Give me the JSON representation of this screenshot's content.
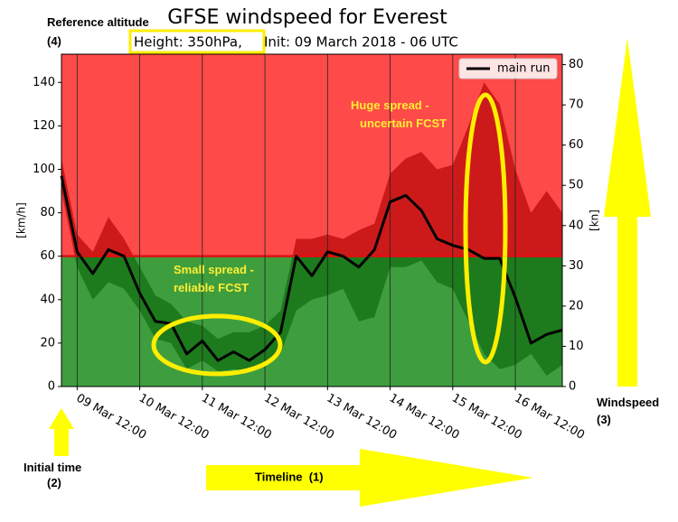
{
  "chart_data": {
    "type": "line",
    "title": "GFSE windspeed for Everest",
    "subtitle_parts": [
      "Height: 350hPa,",
      "Init: 09 March 2018 - 06 UTC"
    ],
    "y_label": "[km/h]",
    "y2_label": "[kn]",
    "x": [
      "2018-03-09T06:00",
      "2018-03-09T12:00",
      "2018-03-09T18:00",
      "2018-03-10T00:00",
      "2018-03-10T06:00",
      "2018-03-10T12:00",
      "2018-03-10T18:00",
      "2018-03-11T00:00",
      "2018-03-11T06:00",
      "2018-03-11T12:00",
      "2018-03-11T18:00",
      "2018-03-12T00:00",
      "2018-03-12T06:00",
      "2018-03-12T12:00",
      "2018-03-12T18:00",
      "2018-03-13T00:00",
      "2018-03-13T06:00",
      "2018-03-13T12:00",
      "2018-03-13T18:00",
      "2018-03-14T00:00",
      "2018-03-14T06:00",
      "2018-03-14T12:00",
      "2018-03-14T18:00",
      "2018-03-15T00:00",
      "2018-03-15T06:00",
      "2018-03-15T12:00",
      "2018-03-15T18:00",
      "2018-03-16T00:00",
      "2018-03-16T06:00",
      "2018-03-16T12:00",
      "2018-03-16T18:00",
      "2018-03-17T00:00",
      "2018-03-17T06:00"
    ],
    "series": [
      {
        "name": "main run",
        "color": "#000000",
        "values": [
          97,
          62,
          52,
          63,
          60,
          43,
          30,
          29,
          15,
          21,
          12,
          16,
          12,
          17,
          25,
          60,
          51,
          62,
          60,
          55,
          63,
          85,
          88,
          81,
          68,
          65,
          63,
          59,
          59,
          41,
          20,
          24,
          26
        ]
      }
    ],
    "spread": {
      "upper": [
        105,
        70,
        62,
        78,
        68,
        55,
        42,
        38,
        30,
        28,
        22,
        25,
        25,
        28,
        35,
        68,
        68,
        70,
        68,
        72,
        75,
        98,
        105,
        108,
        100,
        102,
        120,
        140,
        130,
        100,
        80,
        90,
        80
      ],
      "lower": [
        90,
        55,
        40,
        48,
        45,
        35,
        22,
        20,
        8,
        12,
        7,
        8,
        7,
        10,
        15,
        35,
        40,
        42,
        45,
        30,
        32,
        55,
        55,
        58,
        48,
        45,
        30,
        15,
        8,
        10,
        15,
        5,
        10
      ]
    },
    "threshold": 60,
    "above_color": "#ff4a4a",
    "below_color": "#3e9e3e",
    "spread_above_color": "#cc1a1a",
    "spread_below_color": "#1d7a1d",
    "xlim": [
      "2018-03-09T06:00",
      "2018-03-17T06:00"
    ],
    "xticks": [
      {
        "value": "2018-03-09T12:00",
        "label": "09 Mar 12:00"
      },
      {
        "value": "2018-03-10T12:00",
        "label": "10 Mar 12:00"
      },
      {
        "value": "2018-03-11T12:00",
        "label": "11 Mar 12:00"
      },
      {
        "value": "2018-03-12T12:00",
        "label": "12 Mar 12:00"
      },
      {
        "value": "2018-03-13T12:00",
        "label": "13 Mar 12:00"
      },
      {
        "value": "2018-03-14T12:00",
        "label": "14 Mar 12:00"
      },
      {
        "value": "2018-03-15T12:00",
        "label": "15 Mar 12:00"
      },
      {
        "value": "2018-03-16T12:00",
        "label": "16 Mar 12:00"
      }
    ],
    "ylim": [
      0,
      153
    ],
    "yticks": [
      0,
      20,
      40,
      60,
      80,
      100,
      120,
      140
    ],
    "y2lim": [
      0,
      82.6
    ],
    "y2ticks": [
      0,
      10,
      20,
      30,
      40,
      50,
      60,
      70,
      80
    ],
    "grid": true,
    "legend": "upper right",
    "annotations": {
      "reference": "Reference altitude (4)",
      "huge": "Huge spread - uncertain FCST",
      "small": "Small spread - reliable FCST",
      "windspeed": "Windspeed (3)",
      "initial": "Initial time (2)",
      "timeline": "Timeline  (1)"
    }
  }
}
